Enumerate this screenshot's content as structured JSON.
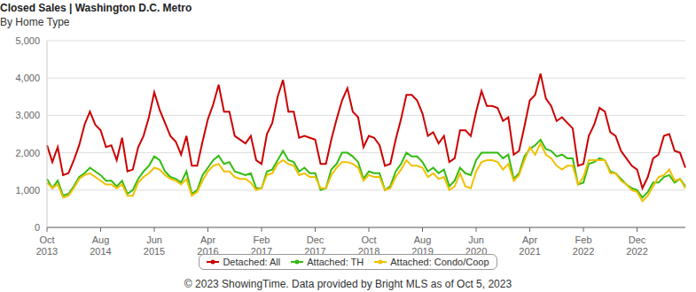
{
  "chart_data": {
    "type": "line",
    "title": "Closed Sales | Washington D.C. Metro",
    "subtitle": "By Home Type",
    "footer": "© 2023 ShowingTime. Data provided by Bright MLS as of Oct 5, 2023",
    "categories": [
      "Oct 2013",
      null,
      null,
      null,
      null,
      null,
      null,
      null,
      null,
      null,
      "Aug 2014",
      null,
      null,
      null,
      null,
      null,
      null,
      null,
      null,
      null,
      "Jun 2015",
      null,
      null,
      null,
      null,
      null,
      null,
      null,
      null,
      null,
      "Apr 2016",
      null,
      null,
      null,
      null,
      null,
      null,
      null,
      null,
      null,
      "Feb 2017",
      null,
      null,
      null,
      null,
      null,
      null,
      null,
      null,
      null,
      "Dec 2017",
      null,
      null,
      null,
      null,
      null,
      null,
      null,
      null,
      null,
      "Oct 2018",
      null,
      null,
      null,
      null,
      null,
      null,
      null,
      null,
      null,
      "Aug 2019",
      null,
      null,
      null,
      null,
      null,
      null,
      null,
      null,
      null,
      "Jun 2020",
      null,
      null,
      null,
      null,
      null,
      null,
      null,
      null,
      null,
      "Apr 2021",
      null,
      null,
      null,
      null,
      null,
      null,
      null,
      null,
      null,
      "Feb 2022",
      null,
      null,
      null,
      null,
      null,
      null,
      null,
      null,
      null,
      "Dec 2022",
      null,
      null,
      null,
      null,
      null,
      null,
      null,
      null,
      null
    ],
    "series": [
      {
        "name": "Detached: All",
        "color": "#cc0000",
        "values": [
          2200,
          1750,
          2150,
          1400,
          1450,
          1800,
          2200,
          2750,
          3100,
          2750,
          2600,
          2150,
          2200,
          1800,
          2400,
          1500,
          1550,
          2150,
          2450,
          2950,
          3620,
          3150,
          2800,
          2450,
          2300,
          1950,
          2450,
          1650,
          1650,
          2300,
          2900,
          3300,
          3820,
          3100,
          3100,
          2450,
          2350,
          2250,
          2450,
          1800,
          1700,
          2500,
          2800,
          3500,
          3950,
          3100,
          3100,
          2400,
          2450,
          2400,
          2350,
          1700,
          1700,
          2350,
          2900,
          3400,
          3730,
          3100,
          2950,
          2150,
          2450,
          2400,
          2200,
          1650,
          1700,
          2350,
          2900,
          3550,
          3550,
          3400,
          3050,
          2450,
          2550,
          2250,
          2450,
          1750,
          1850,
          2600,
          2600,
          2450,
          3100,
          3650,
          3250,
          3250,
          3200,
          2850,
          2950,
          1950,
          2050,
          2700,
          3400,
          3550,
          4120,
          3450,
          3250,
          2850,
          2950,
          2800,
          2650,
          1650,
          1700,
          2450,
          2750,
          3200,
          3100,
          2550,
          2450,
          2050,
          1850,
          1650,
          1550,
          1050,
          1350,
          1850,
          1950,
          2450,
          2500,
          2050,
          2000,
          1600
        ]
      },
      {
        "name": "Attached: TH",
        "color": "#33bb11",
        "values": [
          1300,
          1050,
          1250,
          850,
          900,
          1100,
          1350,
          1450,
          1600,
          1500,
          1400,
          1250,
          1250,
          1100,
          1250,
          900,
          1000,
          1300,
          1500,
          1650,
          1900,
          1800,
          1500,
          1350,
          1300,
          1200,
          1500,
          900,
          1000,
          1400,
          1600,
          1800,
          1920,
          1700,
          1750,
          1500,
          1450,
          1400,
          1450,
          1050,
          1050,
          1500,
          1550,
          1800,
          2050,
          1800,
          1750,
          1500,
          1600,
          1450,
          1450,
          1000,
          1050,
          1550,
          1700,
          2000,
          2000,
          1900,
          1750,
          1300,
          1500,
          1450,
          1450,
          1000,
          1100,
          1500,
          1700,
          2000,
          1900,
          1900,
          1750,
          1500,
          1600,
          1450,
          1550,
          1100,
          1250,
          1600,
          1450,
          1400,
          1800,
          2000,
          2000,
          2000,
          2000,
          1850,
          1950,
          1300,
          1450,
          1900,
          2100,
          2200,
          2350,
          2100,
          2050,
          1900,
          1950,
          1850,
          1850,
          1150,
          1200,
          1700,
          1750,
          1850,
          1800,
          1500,
          1450,
          1300,
          1150,
          1050,
          1000,
          800,
          950,
          1200,
          1200,
          1350,
          1400,
          1200,
          1300,
          1100
        ]
      },
      {
        "name": "Attached: Condo/Coop",
        "color": "#f0c000",
        "values": [
          1200,
          1050,
          1150,
          800,
          850,
          1050,
          1300,
          1400,
          1450,
          1350,
          1250,
          1150,
          1150,
          1050,
          1150,
          850,
          850,
          1200,
          1350,
          1450,
          1600,
          1550,
          1400,
          1300,
          1250,
          1150,
          1300,
          850,
          950,
          1250,
          1500,
          1650,
          1700,
          1500,
          1500,
          1350,
          1300,
          1300,
          1200,
          1000,
          1050,
          1400,
          1450,
          1700,
          1800,
          1700,
          1650,
          1400,
          1450,
          1350,
          1350,
          1050,
          1050,
          1400,
          1600,
          1750,
          1750,
          1700,
          1600,
          1250,
          1400,
          1350,
          1350,
          1000,
          1050,
          1350,
          1550,
          1800,
          1650,
          1650,
          1600,
          1350,
          1450,
          1300,
          1350,
          1000,
          1100,
          1450,
          1100,
          1050,
          1500,
          1750,
          1800,
          1800,
          1750,
          1550,
          1700,
          1250,
          1400,
          1800,
          2150,
          1950,
          2250,
          1950,
          1850,
          1650,
          1550,
          1650,
          1650,
          1150,
          1350,
          1800,
          1800,
          1800,
          1800,
          1450,
          1450,
          1250,
          1150,
          1000,
          950,
          700,
          850,
          1100,
          1350,
          1400,
          1550,
          1250,
          1300,
          1050
        ]
      }
    ],
    "ylim": [
      0,
      5000
    ],
    "yticks": [
      0,
      {
        "value": 1000,
        "label": "1,000"
      },
      {
        "value": 2000,
        "label": "2,000"
      },
      {
        "value": 3000,
        "label": "3,000"
      },
      {
        "value": 4000,
        "label": "4,000"
      },
      {
        "value": 5000,
        "label": "5,000"
      }
    ],
    "grid": true,
    "legend": "bottom"
  }
}
